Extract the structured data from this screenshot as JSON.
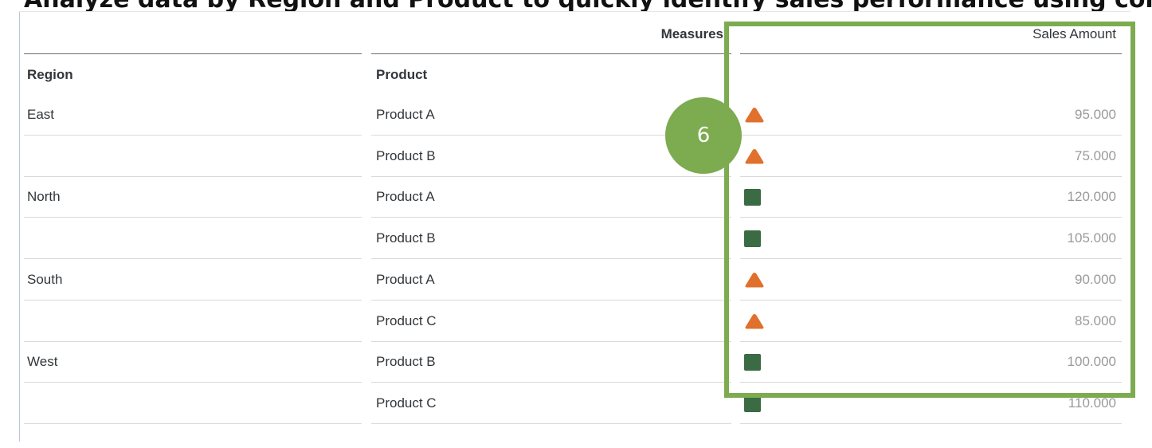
{
  "caption": {
    "text": "Analyze data by Region and Product to quickly identify sales performance using conditional formatting"
  },
  "table": {
    "measures_label": "Measures",
    "measure_column": "Sales Amount",
    "headers": {
      "region": "Region",
      "product": "Product"
    },
    "rows": [
      {
        "region": "East",
        "product": "Product A",
        "value": "95.000",
        "status_icon": "triangle-warning-icon"
      },
      {
        "region": "",
        "product": "Product B",
        "value": "75.000",
        "status_icon": "triangle-warning-icon"
      },
      {
        "region": "North",
        "product": "Product A",
        "value": "120.000",
        "status_icon": "square-good-icon"
      },
      {
        "region": "",
        "product": "Product B",
        "value": "105.000",
        "status_icon": "square-good-icon"
      },
      {
        "region": "South",
        "product": "Product A",
        "value": "90.000",
        "status_icon": "triangle-warning-icon"
      },
      {
        "region": "",
        "product": "Product C",
        "value": "85.000",
        "status_icon": "triangle-warning-icon"
      },
      {
        "region": "West",
        "product": "Product B",
        "value": "100.000",
        "status_icon": "square-good-icon"
      },
      {
        "region": "",
        "product": "Product C",
        "value": "110.000",
        "status_icon": "square-good-icon"
      }
    ]
  },
  "callout": {
    "step_number": "6"
  },
  "colors": {
    "warning": "#e0702c",
    "good": "#3a6b42",
    "highlight": "#7cab50",
    "value_text": "#9a9a9a"
  }
}
